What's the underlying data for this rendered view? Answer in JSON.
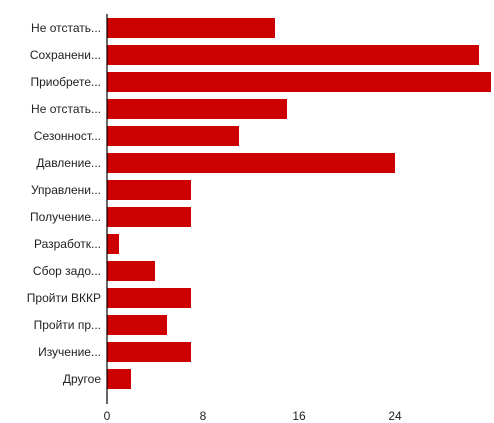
{
  "chart_data": {
    "type": "bar",
    "orientation": "horizontal",
    "categories": [
      "Не отстать...",
      "Сохранени...",
      "Приобрете...",
      "Не отстать...",
      "Сезонност...",
      "Давление...",
      "Управлени...",
      "Получение...",
      "Разработк...",
      "Сбор задо...",
      "Пройти ВККР",
      "Пройти пр...",
      "Изучение...",
      "Другое"
    ],
    "values": [
      14,
      31,
      32,
      15,
      11,
      24,
      7,
      7,
      1,
      4,
      7,
      5,
      7,
      2
    ],
    "xticks": [
      "0",
      "8",
      "16",
      "24"
    ],
    "xlim": [
      0,
      32
    ],
    "grid": false,
    "bar_color": "#cc0000",
    "title": "",
    "xlabel": "",
    "ylabel": ""
  }
}
